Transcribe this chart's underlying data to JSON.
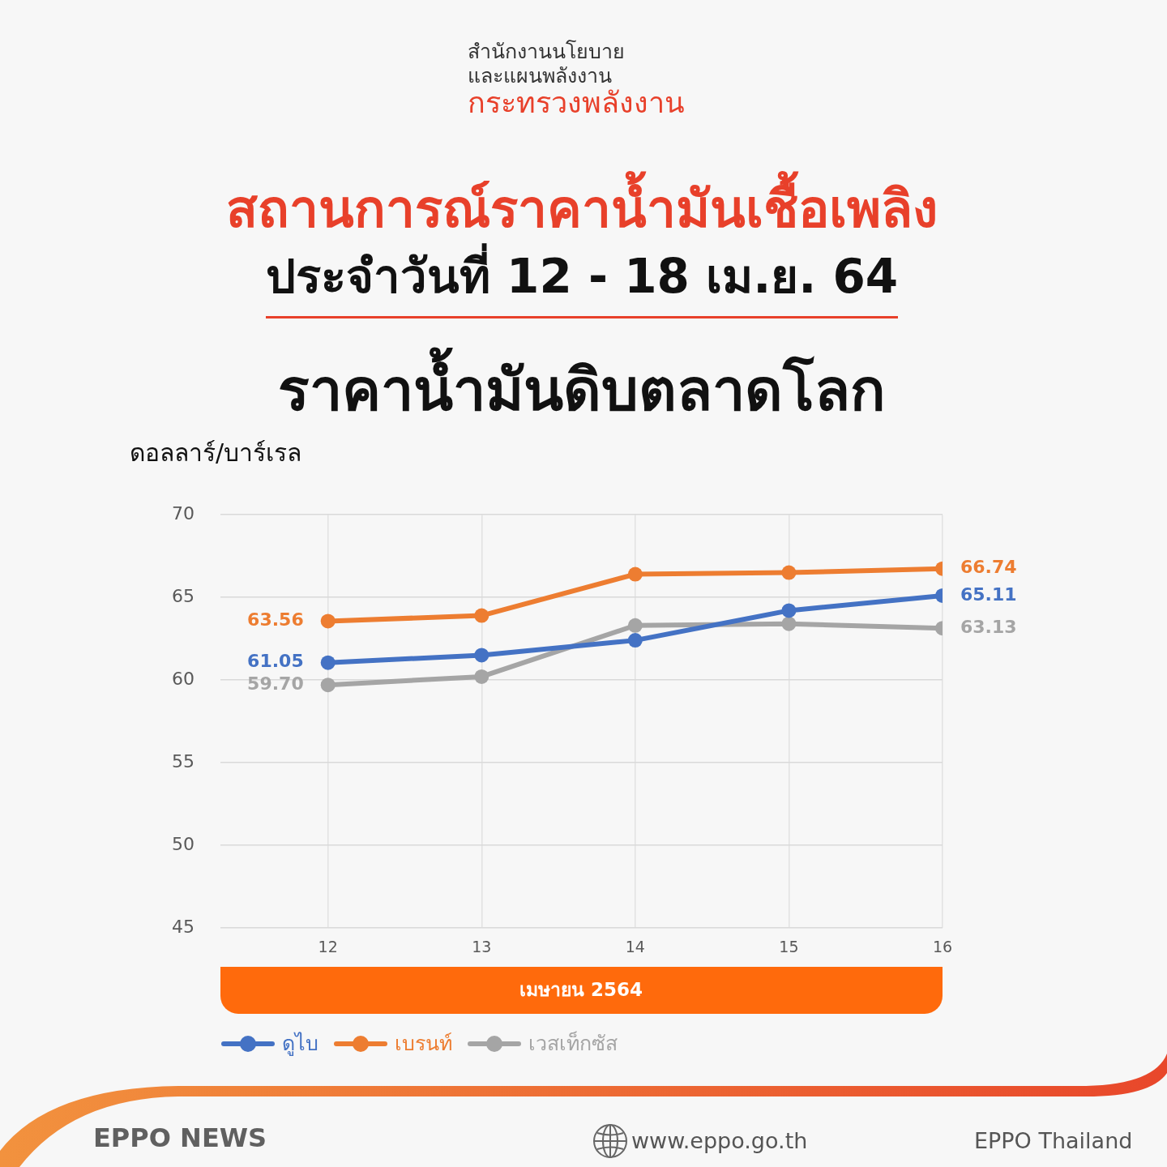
{
  "chart_data": {
    "type": "line",
    "title": "สถานการณ์ราคาน้ำมันเชื้อเพลิง",
    "subtitle": "ประจำวันที่ 12 - 18 เม.ย. 64",
    "xlabel": "เมษายน 2564",
    "ylabel": "ดอลลาร์/บาร์เรล",
    "annotations": [
      "สำนักงานนโยบาย",
      "และแผนพลังงาน",
      "กระทรวงพลังงาน",
      "ราคาน้ำมันดิบตลาดโลก",
      "EPPO NEWS",
      "www.eppo.go.th",
      "EPPO Thailand"
    ],
    "x": [
      12,
      13,
      14,
      15,
      16
    ],
    "xlim": [
      11.3,
      16
    ],
    "xticks": [
      12,
      13,
      14,
      15,
      16
    ],
    "ylim": [
      45,
      70
    ],
    "yticks": [
      45,
      50,
      55,
      60,
      65,
      70
    ],
    "series": [
      {
        "name": "ดูไบ",
        "color": "#4472c4",
        "values": [
          61.05,
          61.5,
          62.4,
          64.2,
          65.11
        ],
        "value_labels": [
          "61.05",
          null,
          null,
          null,
          "65.11"
        ]
      },
      {
        "name": "เบรนท์",
        "color": "#ed7d31",
        "values": [
          63.56,
          63.9,
          66.4,
          66.5,
          66.74
        ],
        "value_labels": [
          "63.56",
          null,
          null,
          null,
          "66.74"
        ]
      },
      {
        "name": "เวสเท็กซัส",
        "color": "#a5a5a5",
        "values": [
          59.7,
          60.2,
          63.3,
          63.4,
          63.13
        ],
        "value_labels": [
          "59.70",
          null,
          null,
          null,
          "63.13"
        ]
      }
    ],
    "grid": true,
    "legend": "bottom",
    "marker": "circle"
  }
}
